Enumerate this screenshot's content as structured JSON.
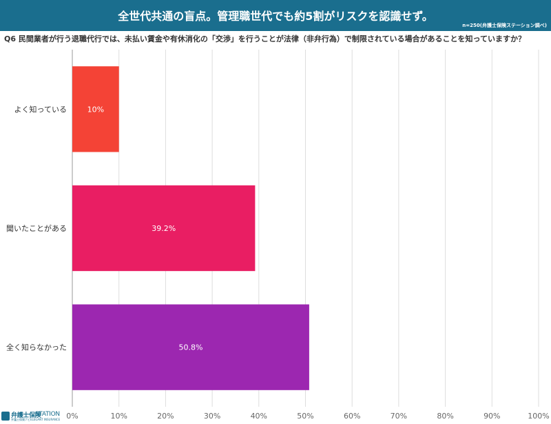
{
  "header": {
    "title": "全世代共通の盲点。管理職世代でも約5割がリスクを認識せず。",
    "source": "n=250(弁護士保険ステーション調べ)",
    "background_color": "#1a6e8e"
  },
  "question": "Q6 民間業者が行う退職代行では、未払い賃金や有休消化の「交渉」を行うことが法律（非弁行為）で制限されている場合があることを知っていますか？",
  "logo": {
    "main": "弁護士保険",
    "station": "STATION",
    "sub1": "弁護士保険ナビ",
    "sub2": "ELEGANT INSURANCE"
  },
  "chart_data": {
    "type": "bar",
    "orientation": "horizontal",
    "categories": [
      "よく知っている",
      "聞いたことがある",
      "全く知らなかった"
    ],
    "values": [
      10,
      39.2,
      50.8
    ],
    "value_labels": [
      "10%",
      "39.2%",
      "50.8%"
    ],
    "colors": [
      "#f44336",
      "#e91e63",
      "#9c27b0"
    ],
    "xlim": [
      0,
      100
    ],
    "xticks": [
      "0%",
      "10%",
      "20%",
      "30%",
      "40%",
      "50%",
      "60%",
      "70%",
      "80%",
      "90%",
      "100%"
    ],
    "grid": true,
    "xlabel": "",
    "ylabel": ""
  }
}
